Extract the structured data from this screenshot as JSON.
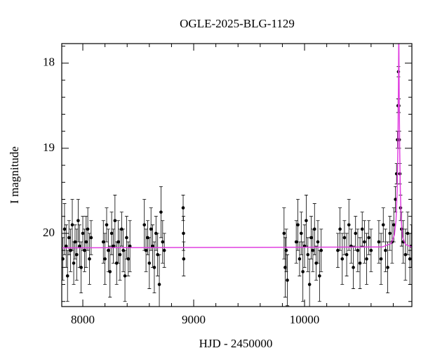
{
  "chart_data": {
    "type": "errorbar",
    "title": "OGLE-2025-BLG-1129",
    "xlabel": "HJD - 2450000",
    "ylabel": "I magnitude",
    "xlim": [
      7810,
      10968
    ],
    "ylim": [
      20.86,
      17.77
    ],
    "xticks": [
      8000,
      9000,
      10000
    ],
    "yticks": [
      18,
      19,
      20
    ],
    "xminorticks": [
      8200,
      8400,
      8600,
      8800,
      9200,
      9400,
      9600,
      9800,
      10200,
      10400,
      10600,
      10800
    ],
    "yminorticks": [
      17.8,
      18.2,
      18.4,
      18.6,
      18.8,
      19.2,
      19.4,
      19.6,
      19.8,
      20.2,
      20.4,
      20.6,
      20.8
    ],
    "points": {
      "color": "#000000",
      "x": [
        7820,
        7835,
        7850,
        7862,
        7875,
        7890,
        7905,
        7918,
        7930,
        7945,
        7958,
        7970,
        7985,
        8000,
        8015,
        8030,
        8045,
        8060,
        8075,
        8185,
        8200,
        8215,
        8230,
        8245,
        8260,
        8275,
        8290,
        8305,
        8320,
        8335,
        8350,
        8365,
        8380,
        8395,
        8410,
        8425,
        8555,
        8570,
        8585,
        8600,
        8615,
        8630,
        8645,
        8660,
        8675,
        8690,
        8705,
        8720,
        8735,
        8905,
        8908,
        8910,
        9815,
        9825,
        9835,
        9845,
        9925,
        9940,
        9955,
        9970,
        9985,
        10000,
        10015,
        10030,
        10045,
        10060,
        10075,
        10090,
        10105,
        10120,
        10135,
        10150,
        10300,
        10320,
        10340,
        10360,
        10380,
        10400,
        10420,
        10440,
        10460,
        10480,
        10500,
        10520,
        10540,
        10560,
        10580,
        10600,
        10670,
        10690,
        10710,
        10730,
        10750,
        10770,
        10790,
        10805,
        10820,
        10830,
        10838,
        10843,
        10847,
        10851,
        10855,
        10860,
        10866,
        10875,
        10890,
        10910,
        10930,
        10950,
        10965
      ],
      "values": [
        20.3,
        19.95,
        20.15,
        20.5,
        20.05,
        20.2,
        19.9,
        20.35,
        20.1,
        20.25,
        19.85,
        20.15,
        20.4,
        20.0,
        20.2,
        20.1,
        19.95,
        20.3,
        20.05,
        20.1,
        20.3,
        19.9,
        20.2,
        20.45,
        20.0,
        20.15,
        19.85,
        20.35,
        20.1,
        20.25,
        19.95,
        20.2,
        20.5,
        20.05,
        20.3,
        20.15,
        19.9,
        20.2,
        20.05,
        20.35,
        19.95,
        20.15,
        20.4,
        20.0,
        20.25,
        20.6,
        19.75,
        20.1,
        20.2,
        19.7,
        20.0,
        20.3,
        20.0,
        20.4,
        20.2,
        20.55,
        20.1,
        19.9,
        20.3,
        20.0,
        20.45,
        20.15,
        19.85,
        20.25,
        20.6,
        20.05,
        20.2,
        19.95,
        20.35,
        20.1,
        20.5,
        20.2,
        20.2,
        19.95,
        20.3,
        20.05,
        20.25,
        19.9,
        20.15,
        20.4,
        20.0,
        20.2,
        20.35,
        19.95,
        20.1,
        20.3,
        20.05,
        20.2,
        20.1,
        20.3,
        19.9,
        20.2,
        20.4,
        20.0,
        20.1,
        19.9,
        19.6,
        19.3,
        18.9,
        18.5,
        18.1,
        18.5,
        18.9,
        19.3,
        19.7,
        19.95,
        20.1,
        20.25,
        20.0,
        20.3,
        20.15
      ],
      "errors": [
        0.25,
        0.3,
        0.25,
        0.3,
        0.2,
        0.25,
        0.3,
        0.25,
        0.2,
        0.3,
        0.25,
        0.25,
        0.3,
        0.2,
        0.25,
        0.3,
        0.25,
        0.3,
        0.2,
        0.25,
        0.3,
        0.2,
        0.25,
        0.3,
        0.25,
        0.2,
        0.3,
        0.25,
        0.25,
        0.3,
        0.2,
        0.25,
        0.3,
        0.25,
        0.2,
        0.3,
        0.3,
        0.25,
        0.2,
        0.3,
        0.25,
        0.25,
        0.3,
        0.2,
        0.25,
        0.35,
        0.3,
        0.25,
        0.2,
        0.15,
        0.2,
        0.2,
        0.3,
        0.35,
        0.25,
        0.3,
        0.25,
        0.3,
        0.2,
        0.25,
        0.35,
        0.25,
        0.3,
        0.2,
        0.3,
        0.25,
        0.25,
        0.3,
        0.2,
        0.25,
        0.3,
        0.25,
        0.2,
        0.25,
        0.3,
        0.2,
        0.25,
        0.3,
        0.2,
        0.25,
        0.2,
        0.25,
        0.3,
        0.2,
        0.25,
        0.3,
        0.2,
        0.25,
        0.25,
        0.3,
        0.2,
        0.25,
        0.3,
        0.2,
        0.25,
        0.2,
        0.15,
        0.12,
        0.1,
        0.08,
        0.06,
        0.08,
        0.1,
        0.12,
        0.15,
        0.2,
        0.25,
        0.3,
        0.25,
        0.3,
        0.25
      ]
    },
    "model": {
      "color": "#e040e0",
      "x": [
        7810,
        10700,
        10780,
        10810,
        10825,
        10835,
        10842,
        10846,
        10850,
        10854,
        10858,
        10864,
        10872,
        10885,
        10910,
        10968
      ],
      "values": [
        20.17,
        20.16,
        20.12,
        20.02,
        19.85,
        19.5,
        19.0,
        18.4,
        17.6,
        18.4,
        19.0,
        19.5,
        19.85,
        20.05,
        20.13,
        20.16
      ]
    }
  }
}
